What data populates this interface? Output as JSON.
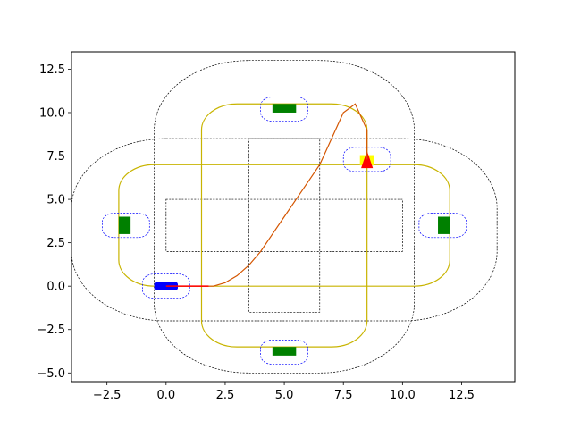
{
  "chart_data": {
    "type": "line",
    "title": "",
    "xlabel": "",
    "ylabel": "",
    "xlim": [
      -4.0,
      14.75
    ],
    "ylim": [
      -5.5,
      13.5
    ],
    "grid": false,
    "legend": "none",
    "x_ticks": [
      {
        "value": -2.5,
        "label": "−2.5"
      },
      {
        "value": 0.0,
        "label": "0.0"
      },
      {
        "value": 2.5,
        "label": "2.5"
      },
      {
        "value": 5.0,
        "label": "5.0"
      },
      {
        "value": 7.5,
        "label": "7.5"
      },
      {
        "value": 10.0,
        "label": "10.0"
      },
      {
        "value": 12.5,
        "label": "12.5"
      }
    ],
    "y_ticks": [
      {
        "value": -5.0,
        "label": "−5.0"
      },
      {
        "value": -2.5,
        "label": "−2.5"
      },
      {
        "value": 0.0,
        "label": "0.0"
      },
      {
        "value": 2.5,
        "label": "2.5"
      },
      {
        "value": 5.0,
        "label": "5.0"
      },
      {
        "value": 7.5,
        "label": "7.5"
      },
      {
        "value": 10.0,
        "label": "10.0"
      },
      {
        "value": 12.5,
        "label": "12.5"
      }
    ],
    "colors": {
      "boundary": "#000000",
      "route": "#c8b400",
      "zone": "#0000ff",
      "parked": "#008000",
      "ego": "#0000ff",
      "target": "#ffff00",
      "target_marker": "#ff0000",
      "path": "#d45500"
    },
    "outer_boundaries": [
      {
        "x0": 1.5,
        "x1": 8.5,
        "y0": 8.5,
        "y1": 13.0,
        "r": 1.5
      },
      {
        "x0": -4.0,
        "x1": 14.0,
        "y0": -2.0,
        "y1": 8.5,
        "r": 1.5
      }
    ],
    "outer_union": {
      "vertical": {
        "x0": -0.5,
        "x1": 10.5,
        "y0": -5.0,
        "y1": 13.0,
        "r": 4.0
      },
      "horizontal": {
        "x0": -4.0,
        "x1": 14.0,
        "y0": -2.0,
        "y1": 8.5,
        "r": 4.0
      }
    },
    "inner_boundaries": [
      {
        "x0": 0.0,
        "x1": 10.0,
        "y0": 2.0,
        "y1": 5.0
      },
      {
        "x0": 3.5,
        "x1": 6.5,
        "y0": -1.5,
        "y1": 8.5
      }
    ],
    "route_loops": [
      {
        "x0": 1.5,
        "x1": 8.5,
        "y0": -3.5,
        "y1": 10.5,
        "r": 1.5
      },
      {
        "x0": -2.0,
        "x1": 12.0,
        "y0": 0.0,
        "y1": 7.0,
        "r": 1.5
      }
    ],
    "stations": [
      {
        "name": "top",
        "x": 5.0,
        "y": 10.25,
        "w": 1.0,
        "h": 0.5
      },
      {
        "name": "bottom",
        "x": 5.0,
        "y": -3.75,
        "w": 1.0,
        "h": 0.5
      },
      {
        "name": "left",
        "x": -1.75,
        "y": 3.5,
        "w": 0.5,
        "h": 1.0
      },
      {
        "name": "right",
        "x": 11.75,
        "y": 3.5,
        "w": 0.5,
        "h": 1.0
      }
    ],
    "zones": [
      {
        "x": 5.0,
        "y": 10.2,
        "w": 2.0,
        "h": 1.4
      },
      {
        "x": 5.0,
        "y": -3.8,
        "w": 2.0,
        "h": 1.4
      },
      {
        "x": -1.7,
        "y": 3.5,
        "w": 2.0,
        "h": 1.4
      },
      {
        "x": 11.7,
        "y": 3.5,
        "w": 2.0,
        "h": 1.4
      },
      {
        "x": 8.5,
        "y": 7.3,
        "w": 2.0,
        "h": 1.4
      },
      {
        "x": 0.0,
        "y": 0.0,
        "w": 2.0,
        "h": 1.4
      }
    ],
    "target": {
      "x": 8.5,
      "y": 7.25,
      "w": 0.6,
      "h": 0.6
    },
    "target_marker": {
      "x": 8.5,
      "y": 7.3,
      "w": 0.5,
      "h": 1.0
    },
    "ego": {
      "x": 0.0,
      "y": 0.0,
      "w": 1.0,
      "h": 0.5
    },
    "path": {
      "x": [
        0.0,
        1.5,
        2.0,
        2.5,
        3.0,
        3.5,
        4.0,
        4.5,
        5.0,
        5.5,
        6.0,
        6.5,
        7.0,
        7.5,
        8.0,
        8.5,
        8.5,
        8.5
      ],
      "y": [
        0.0,
        0.0,
        0.0,
        0.2,
        0.6,
        1.2,
        2.0,
        3.0,
        4.0,
        5.0,
        6.0,
        7.0,
        8.5,
        10.0,
        10.5,
        9.0,
        8.0,
        7.3
      ]
    },
    "heading_line": {
      "x": [
        0.0,
        1.8
      ],
      "y": [
        0.0,
        0.0
      ]
    }
  }
}
